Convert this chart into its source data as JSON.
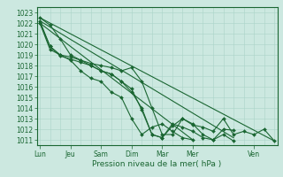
{
  "title": "",
  "xlabel": "Pression niveau de la mer( hPa )",
  "bg_color": "#cce8e0",
  "grid_color_minor": "#aad4c8",
  "grid_color_major": "#aad4c8",
  "line_color": "#1a6632",
  "ylim": [
    1010.5,
    1023.5
  ],
  "xlim": [
    -0.3,
    23.3
  ],
  "yticks": [
    1011,
    1012,
    1013,
    1014,
    1015,
    1016,
    1017,
    1018,
    1019,
    1020,
    1021,
    1022,
    1023
  ],
  "day_x": [
    0,
    3,
    6,
    9,
    12,
    15,
    21
  ],
  "day_names": [
    "Lun",
    "Jeu",
    "Sam",
    "Dim",
    "Mar",
    "Mer",
    "Ven"
  ],
  "series": [
    {
      "x": [
        0,
        1,
        2,
        3,
        4,
        5,
        6,
        7,
        8,
        9,
        10,
        11,
        12,
        13,
        14,
        15,
        16,
        17,
        18,
        19,
        20,
        21,
        22,
        23
      ],
      "y": [
        1022.5,
        1021.8,
        1020.5,
        1019.0,
        1018.5,
        1018.2,
        1018.0,
        1017.8,
        1017.5,
        1017.8,
        1016.5,
        1014.0,
        1011.5,
        1011.5,
        1013.0,
        1012.4,
        1012.2,
        1011.8,
        1013.0,
        1011.5,
        1011.8,
        1011.5,
        1012.0,
        1010.9
      ]
    },
    {
      "x": [
        0,
        1,
        2,
        3,
        4,
        5,
        6,
        7,
        8,
        9,
        10,
        11,
        12,
        13,
        14,
        15,
        16,
        17,
        18,
        19
      ],
      "y": [
        1022.2,
        1019.8,
        1018.9,
        1018.6,
        1018.3,
        1018.0,
        1017.5,
        1017.2,
        1016.5,
        1015.5,
        1014.0,
        1011.5,
        1011.2,
        1012.3,
        1013.0,
        1012.5,
        1011.5,
        1011.0,
        1012.0,
        1011.9
      ]
    },
    {
      "x": [
        0,
        1,
        2,
        3,
        4,
        5,
        6,
        7,
        8,
        9,
        10,
        11,
        12,
        13,
        14,
        15,
        16,
        17,
        18,
        19
      ],
      "y": [
        1022.0,
        1019.8,
        1019.0,
        1018.8,
        1018.5,
        1018.0,
        1017.5,
        1017.2,
        1016.5,
        1015.8,
        1013.8,
        1011.5,
        1011.2,
        1012.5,
        1012.2,
        1011.8,
        1011.2,
        1011.0,
        1011.5,
        1010.9
      ]
    },
    {
      "x": [
        0,
        1,
        2,
        3,
        4,
        5,
        6,
        7,
        8,
        9,
        10,
        11,
        12,
        13,
        14,
        15
      ],
      "y": [
        1022.0,
        1019.5,
        1019.0,
        1018.5,
        1017.5,
        1016.8,
        1016.5,
        1015.5,
        1015.0,
        1013.0,
        1011.5,
        1012.2,
        1012.5,
        1011.8,
        1011.2,
        1011.0
      ]
    }
  ],
  "trend_lines": [
    {
      "x": [
        0,
        23
      ],
      "y": [
        1022.5,
        1010.9
      ]
    },
    {
      "x": [
        0,
        19
      ],
      "y": [
        1022.2,
        1011.2
      ]
    },
    {
      "x": [
        0,
        15
      ],
      "y": [
        1022.0,
        1011.0
      ]
    }
  ],
  "ytick_fontsize": 5.5,
  "xtick_fontsize": 5.5,
  "xlabel_fontsize": 6.5
}
